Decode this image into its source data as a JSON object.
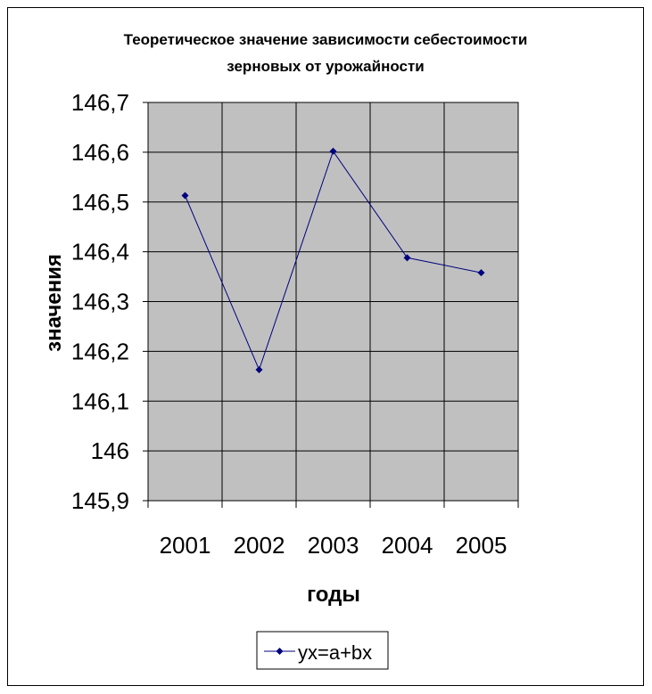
{
  "chart_data": {
    "type": "line",
    "title": [
      "Теоретическое значение зависимости себестоимости",
      "зерновых от урожайности"
    ],
    "xlabel": "годы",
    "ylabel": "значения",
    "categories": [
      "2001",
      "2002",
      "2003",
      "2004",
      "2005"
    ],
    "y_ticks": [
      "145,9",
      "146",
      "146,1",
      "146,2",
      "146,3",
      "146,4",
      "146,5",
      "146,6",
      "146,7"
    ],
    "ylim": [
      145.9,
      146.7
    ],
    "grid": true,
    "legend_position": "bottom",
    "series": [
      {
        "name": "yx=a+bx",
        "values": [
          146.513,
          146.163,
          146.602,
          146.388,
          146.358
        ]
      }
    ],
    "colors": {
      "plot_background": "#c0c0c0",
      "series_line": "#00007f",
      "grid": "#000000"
    }
  }
}
